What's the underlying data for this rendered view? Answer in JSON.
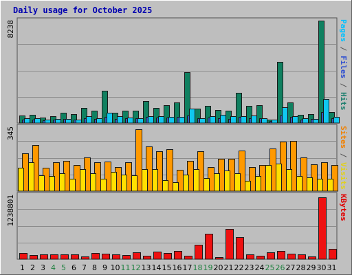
{
  "chart_data": {
    "type": "bar",
    "title": "Daily usage for October 2025",
    "days": [
      "1",
      "2",
      "3",
      "4",
      "5",
      "6",
      "7",
      "8",
      "9",
      "10",
      "11",
      "12",
      "13",
      "14",
      "15",
      "16",
      "17",
      "18",
      "19",
      "20",
      "21",
      "22",
      "23",
      "24",
      "25",
      "26",
      "27",
      "28",
      "29",
      "30",
      "31"
    ],
    "weekend_days": [
      "4",
      "5",
      "11",
      "12",
      "18",
      "19",
      "25",
      "26"
    ],
    "panels": [
      {
        "id": "hits",
        "ymax": 8238,
        "ymax_label": "8238",
        "legend": [
          {
            "text": "Pages",
            "color": "#00c0ff"
          },
          {
            "text": " / ",
            "color": "#555555"
          },
          {
            "text": "Files",
            "color": "#3050d0"
          },
          {
            "text": " / ",
            "color": "#555555"
          },
          {
            "text": "Hits",
            "color": "#208070"
          }
        ],
        "series": [
          {
            "name": "Hits",
            "color": "#108060",
            "values": [
              600,
              650,
              450,
              540,
              820,
              700,
              1210,
              1010,
              2620,
              820,
              1020,
              1020,
              1760,
              1200,
              1420,
              1640,
              4070,
              1170,
              1370,
              1070,
              1010,
              2420,
              1370,
              1420,
              280,
              4930,
              1660,
              640,
              740,
              8238,
              900
            ]
          },
          {
            "name": "Files",
            "color": "#2f5ec0",
            "values": [
              300,
              300,
              200,
              250,
              350,
              300,
              400,
              350,
              500,
              350,
              380,
              380,
              500,
              420,
              450,
              500,
              600,
              400,
              450,
              380,
              350,
              500,
              400,
              400,
              150,
              600,
              500,
              300,
              350,
              900,
              400
            ]
          },
          {
            "name": "Pages",
            "color": "#10c8f0",
            "values": [
              360,
              370,
              250,
              320,
              330,
              280,
              550,
              380,
              820,
              570,
              450,
              400,
              540,
              540,
              480,
              520,
              1140,
              370,
              580,
              660,
              530,
              560,
              590,
              400,
              250,
              1270,
              570,
              410,
              340,
              1930,
              480
            ]
          }
        ]
      },
      {
        "id": "visits",
        "ymax": 345,
        "ymax_label": "345",
        "legend": [
          {
            "text": "Sites",
            "color": "#f08000"
          },
          {
            "text": " / ",
            "color": "#555555"
          },
          {
            "text": "Visits",
            "color": "#e0d020"
          }
        ],
        "series": [
          {
            "name": "Visits",
            "color": "#ff9900",
            "values": [
              205,
              250,
              125,
              155,
              165,
              140,
              180,
              155,
              160,
              130,
              155,
              335,
              240,
              215,
              225,
              115,
              165,
              215,
              130,
              175,
              175,
              220,
              130,
              140,
              230,
              266,
              272,
              180,
              145,
              155,
              140
            ]
          },
          {
            "name": "Sites",
            "color": "#ffe000",
            "values": [
              125,
              155,
              85,
              80,
              95,
              65,
              120,
              95,
              65,
              105,
              90,
              85,
              120,
              120,
              60,
              50,
              90,
              120,
              70,
              95,
              110,
              95,
              55,
              80,
              140,
              150,
              120,
              80,
              75,
              65,
              65
            ]
          }
        ]
      },
      {
        "id": "kbytes",
        "ymax": 1238801,
        "ymax_label": "1238801",
        "legend": [
          {
            "text": "KBytes",
            "color": "#e00000"
          }
        ],
        "series": [
          {
            "name": "KBytes",
            "color": "#ee1111",
            "values": [
              118000,
              80000,
              94000,
              97000,
              94000,
              94000,
              54000,
              124000,
              110000,
              94000,
              77000,
              136000,
              62000,
              144000,
              118000,
              160000,
              62000,
              284000,
              495000,
              46000,
              592000,
              420000,
              94000,
              62000,
              129000,
              163000,
              112000,
              94000,
              54000,
              1205000,
              199000
            ]
          }
        ]
      }
    ]
  }
}
